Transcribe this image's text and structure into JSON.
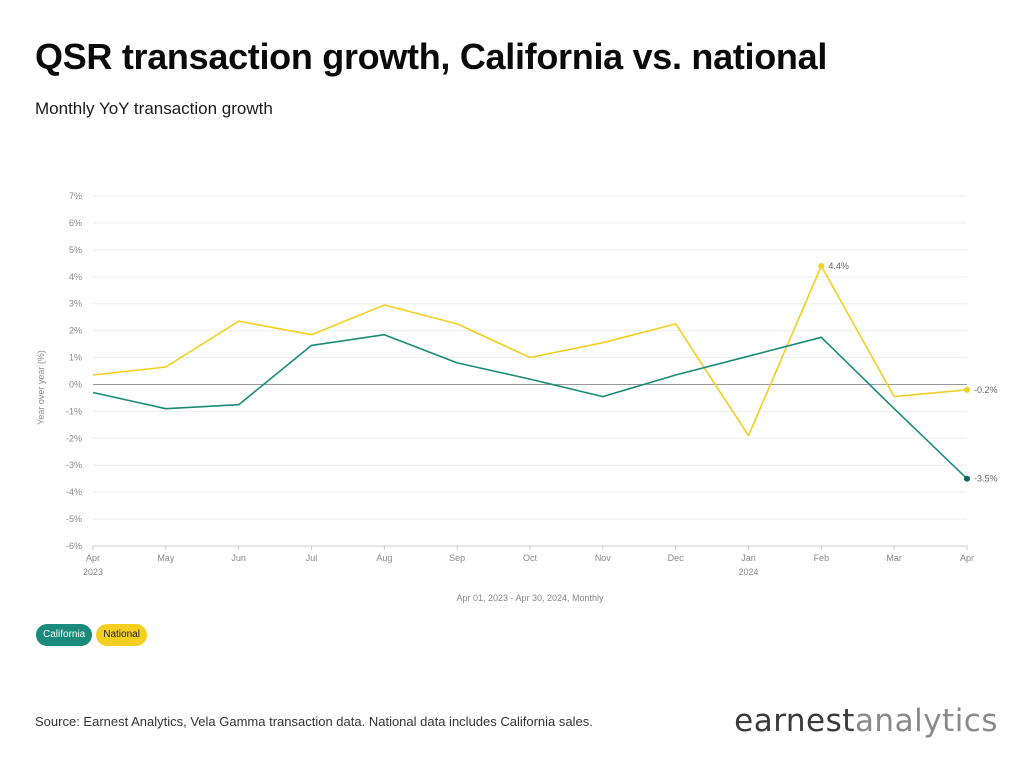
{
  "header": {
    "title": "QSR transaction growth, California vs. national",
    "subtitle": "Monthly YoY transaction growth"
  },
  "chart_data": {
    "type": "line",
    "ylabel": "Year over year (%)",
    "xlabel": "Apr 01, 2023 - Apr 30, 2024, Monthly",
    "ylim": [
      -6,
      7
    ],
    "y_ticks": [
      "7%",
      "6%",
      "5%",
      "4%",
      "3%",
      "2%",
      "1%",
      "0%",
      "-1%",
      "-2%",
      "-3%",
      "-4%",
      "-5%",
      "-6%"
    ],
    "categories": [
      "Apr",
      "May",
      "Jun",
      "Jul",
      "Aug",
      "Sep",
      "Oct",
      "Nov",
      "Dec",
      "Jan",
      "Feb",
      "Mar",
      "Apr"
    ],
    "year_labels": [
      {
        "index": 0,
        "label": "2023"
      },
      {
        "index": 9,
        "label": "2024"
      }
    ],
    "grid": true,
    "series": [
      {
        "name": "California",
        "color": "#1a8a7a",
        "values": [
          -0.3,
          -0.9,
          -0.75,
          1.45,
          1.85,
          0.8,
          0.2,
          -0.45,
          0.35,
          1.05,
          1.75,
          -0.9,
          -3.5
        ],
        "end_label": "-3.5%"
      },
      {
        "name": "National",
        "color": "#f4cf20",
        "values": [
          0.35,
          0.65,
          2.35,
          1.85,
          2.95,
          2.25,
          1.0,
          1.55,
          2.25,
          -1.9,
          4.4,
          -0.45,
          -0.2
        ],
        "end_label": "-0.2%",
        "peak_label": "4.4%"
      }
    ]
  },
  "legend": {
    "california": "California",
    "national": "National"
  },
  "footer": {
    "source": "Source: Earnest Analytics, Vela Gamma transaction data. National data includes California sales.",
    "logo_part1": "earnest",
    "logo_part2": "analytics"
  }
}
